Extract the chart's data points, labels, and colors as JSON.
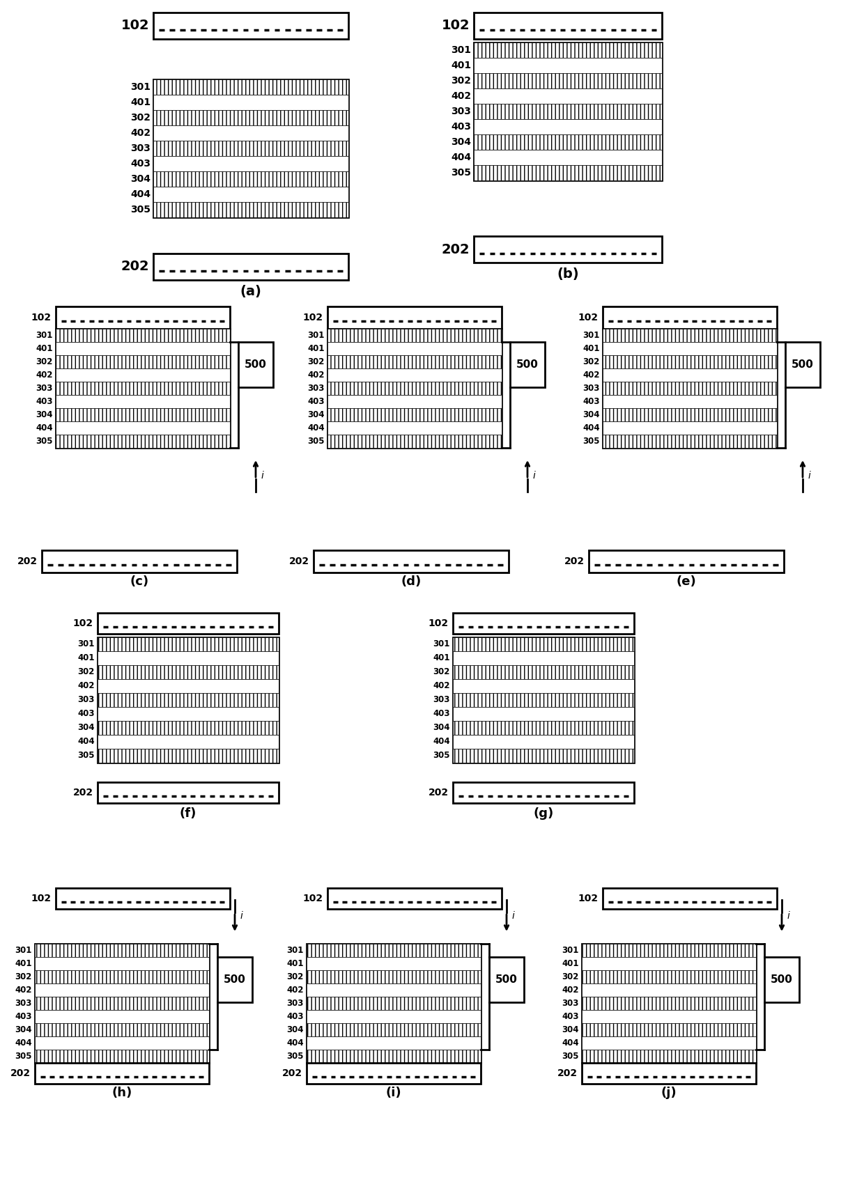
{
  "bg_color": "#ffffff",
  "stack_rows": [
    {
      "label": "301",
      "hatched": true
    },
    {
      "label": "401",
      "hatched": false
    },
    {
      "label": "302",
      "hatched": true
    },
    {
      "label": "402",
      "hatched": false
    },
    {
      "label": "303",
      "hatched": true
    },
    {
      "label": "403",
      "hatched": false
    },
    {
      "label": "304",
      "hatched": true
    },
    {
      "label": "404",
      "hatched": false
    },
    {
      "label": "305",
      "hatched": true
    }
  ]
}
